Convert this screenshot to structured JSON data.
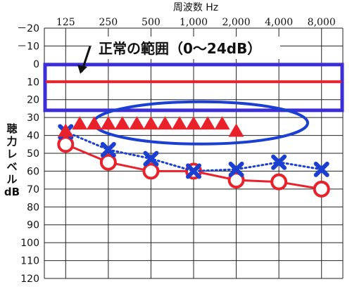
{
  "chart_data": {
    "type": "line",
    "title": "周波数 Hz",
    "ylabel": [
      "聴",
      "力",
      "レ",
      "ベ",
      "ル",
      "dB"
    ],
    "x_categories": [
      "125",
      "250",
      "500",
      "1,000",
      "2,000",
      "4,000",
      "8,000"
    ],
    "y_ticks": [
      "－20",
      "－10",
      "0",
      "10",
      "20",
      "30",
      "40",
      "50",
      "60",
      "70",
      "80",
      "90",
      "100",
      "110",
      "120"
    ],
    "ylim": [
      -20,
      120
    ],
    "y_inverted": true,
    "grid": true,
    "series": [
      {
        "marker": "circle",
        "line_style": "solid",
        "color": "#e8212a",
        "values": [
          45,
          55,
          60,
          60,
          65,
          66,
          70
        ]
      },
      {
        "marker": "x",
        "line_style": "dotted",
        "color": "#1a3fd1",
        "values": [
          38,
          48,
          53,
          60,
          59,
          55,
          59
        ]
      },
      {
        "marker": "triangle",
        "line_style": "none",
        "color": "#e8212a",
        "x_positions": [
          1.0,
          1.33,
          1.67,
          2.0,
          2.33,
          2.67,
          3.0,
          3.33,
          3.67,
          4.0,
          4.33,
          4.67,
          5.0
        ],
        "values": [
          37,
          33,
          33,
          33,
          33,
          33,
          33,
          33,
          33,
          33,
          33,
          33,
          37
        ]
      }
    ],
    "normal_range": {
      "label": "正常の範囲（0〜24dB）",
      "from": 0,
      "to": 24,
      "reference_line": 10,
      "line_color": "#e8212a",
      "box_color": "#3b2ed6"
    },
    "highlight_ellipse_color": "#1a3fd1"
  }
}
